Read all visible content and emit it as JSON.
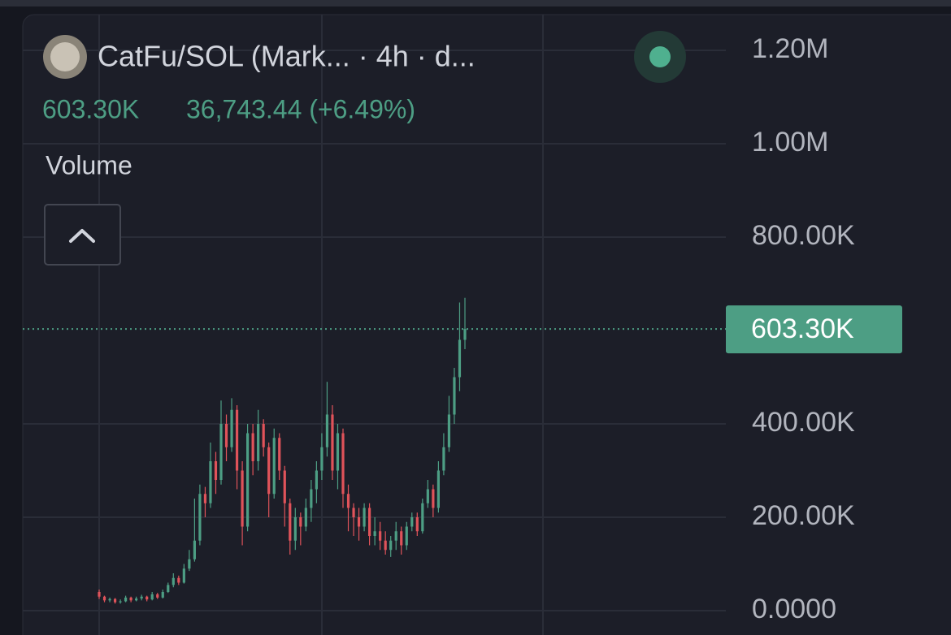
{
  "chart_data": {
    "type": "candlestick",
    "title": "CatFu/SOL (Mark... · 4h · d...",
    "last_value": "603.30K",
    "change": "36,743.44 (+6.49%)",
    "indicator": "Volume",
    "up_color": "#4d9e84",
    "down_color": "#e0535a",
    "open": [
      40000,
      30000,
      22000,
      25000,
      18000,
      20000,
      28000,
      22000,
      26000,
      30000,
      24000,
      35000,
      28000,
      40000,
      55000,
      70000,
      60000,
      90000,
      110000,
      150000,
      250000,
      230000,
      320000,
      280000,
      400000,
      350000,
      430000,
      300000,
      180000,
      380000,
      320000,
      400000,
      350000,
      250000,
      370000,
      300000,
      230000,
      150000,
      200000,
      180000,
      220000,
      260000,
      300000,
      350000,
      420000,
      300000,
      380000,
      250000,
      220000,
      200000,
      180000,
      220000,
      160000,
      170000,
      150000,
      130000,
      150000,
      170000,
      140000,
      180000,
      200000,
      170000,
      230000,
      260000,
      220000,
      300000,
      350000,
      420000,
      500000,
      580000
    ],
    "high": [
      45000,
      32000,
      28000,
      27000,
      24000,
      32000,
      30000,
      30000,
      34000,
      32000,
      40000,
      38000,
      45000,
      60000,
      80000,
      75000,
      100000,
      130000,
      240000,
      270000,
      265000,
      360000,
      340000,
      450000,
      420000,
      455000,
      440000,
      320000,
      400000,
      400000,
      430000,
      410000,
      360000,
      390000,
      380000,
      310000,
      240000,
      220000,
      210000,
      240000,
      280000,
      320000,
      380000,
      490000,
      440000,
      400000,
      390000,
      270000,
      230000,
      220000,
      230000,
      230000,
      200000,
      190000,
      170000,
      160000,
      190000,
      180000,
      190000,
      210000,
      210000,
      240000,
      280000,
      270000,
      320000,
      380000,
      460000,
      520000,
      660000,
      670000
    ],
    "low": [
      25000,
      18000,
      18000,
      15000,
      15000,
      18000,
      18000,
      20000,
      22000,
      20000,
      22000,
      25000,
      26000,
      38000,
      50000,
      55000,
      58000,
      85000,
      105000,
      140000,
      200000,
      220000,
      250000,
      270000,
      320000,
      340000,
      260000,
      140000,
      170000,
      290000,
      300000,
      330000,
      200000,
      240000,
      280000,
      180000,
      120000,
      130000,
      140000,
      170000,
      190000,
      230000,
      280000,
      330000,
      280000,
      260000,
      220000,
      170000,
      160000,
      150000,
      170000,
      140000,
      140000,
      130000,
      120000,
      115000,
      130000,
      120000,
      130000,
      170000,
      160000,
      165000,
      220000,
      200000,
      210000,
      290000,
      340000,
      400000,
      470000,
      560000
    ],
    "close": [
      30000,
      22000,
      25000,
      18000,
      20000,
      28000,
      22000,
      26000,
      30000,
      24000,
      35000,
      28000,
      40000,
      55000,
      70000,
      60000,
      90000,
      110000,
      150000,
      250000,
      230000,
      320000,
      280000,
      400000,
      350000,
      430000,
      300000,
      180000,
      380000,
      320000,
      400000,
      350000,
      250000,
      370000,
      300000,
      230000,
      150000,
      200000,
      180000,
      220000,
      260000,
      300000,
      350000,
      420000,
      300000,
      380000,
      250000,
      220000,
      200000,
      180000,
      220000,
      160000,
      170000,
      150000,
      130000,
      150000,
      170000,
      140000,
      180000,
      200000,
      170000,
      230000,
      260000,
      220000,
      300000,
      350000,
      420000,
      500000,
      580000,
      603300
    ],
    "ylim": [
      0,
      1300000
    ],
    "yticks": [
      {
        "value": 0,
        "label": "0.0000"
      },
      {
        "value": 200000,
        "label": "200.00K"
      },
      {
        "value": 400000,
        "label": "400.00K"
      },
      {
        "value": 800000,
        "label": "800.00K"
      },
      {
        "value": 1000000,
        "label": "1.00M"
      },
      {
        "value": 1200000,
        "label": "1.20M"
      }
    ],
    "grid": true
  }
}
